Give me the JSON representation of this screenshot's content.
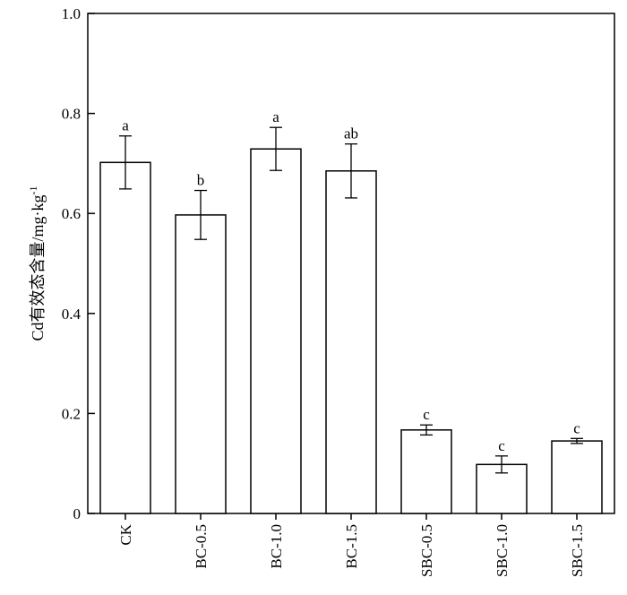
{
  "chart_data": {
    "type": "bar",
    "title": "",
    "xlabel": "",
    "ylabel": "Cd有效态含量/mg·kg",
    "ylabel_superscript": "-1",
    "ylim": [
      0,
      1.0
    ],
    "yticks": [
      {
        "value": 0,
        "label": "0"
      },
      {
        "value": 0.2,
        "label": "0.2"
      },
      {
        "value": 0.4,
        "label": "0.4"
      },
      {
        "value": 0.6,
        "label": "0.6"
      },
      {
        "value": 0.8,
        "label": "0.8"
      },
      {
        "value": 1.0,
        "label": "1.0"
      }
    ],
    "categories": [
      "CK",
      "BC-0.5",
      "BC-1.0",
      "BC-1.5",
      "SBC-0.5",
      "SBC-1.0",
      "SBC-1.5"
    ],
    "values": [
      0.702,
      0.597,
      0.729,
      0.685,
      0.167,
      0.098,
      0.145
    ],
    "errors": [
      0.053,
      0.049,
      0.043,
      0.054,
      0.01,
      0.017,
      0.005
    ],
    "significance": [
      "a",
      "b",
      "a",
      "ab",
      "c",
      "c",
      "c"
    ],
    "grid": false,
    "bar_color": "#ffffff",
    "bar_edge_color": "#000000"
  }
}
